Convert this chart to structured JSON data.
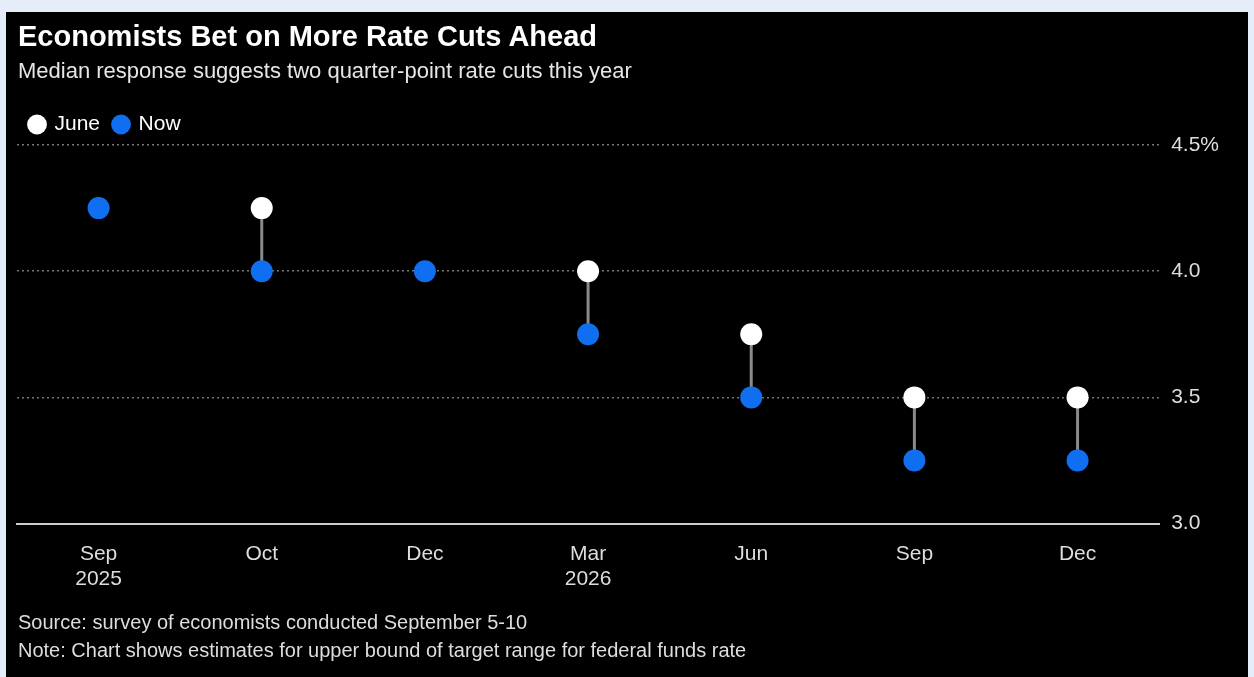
{
  "chart_data": {
    "type": "scatter",
    "title": "Economists Bet on More Rate Cuts Ahead",
    "subtitle": "Median response suggests two quarter-point rate cuts this year",
    "categories": [
      "Sep 2025",
      "Oct",
      "Dec",
      "Mar 2026",
      "Jun",
      "Sep",
      "Dec"
    ],
    "series": [
      {
        "name": "June",
        "color": "#ffffff",
        "values": [
          null,
          4.25,
          null,
          4.0,
          3.75,
          3.5,
          3.5
        ]
      },
      {
        "name": "Now",
        "color": "#0f6ff0",
        "values": [
          4.25,
          4.0,
          4.0,
          3.75,
          3.5,
          3.25,
          3.25
        ]
      }
    ],
    "ylim": [
      3.0,
      4.5
    ],
    "yticks": [
      {
        "value": 3.0,
        "label": "3.0"
      },
      3.5,
      {
        "value": 4.0,
        "label": "4.0"
      },
      {
        "value": 4.5,
        "label": "4.5%"
      }
    ],
    "grid": "y",
    "legend": "top left",
    "marker": "circle",
    "annotations": [
      "Source: survey of economists conducted September 5-10",
      "Note: Chart shows estimates for upper bound of target range for federal funds rate"
    ]
  }
}
